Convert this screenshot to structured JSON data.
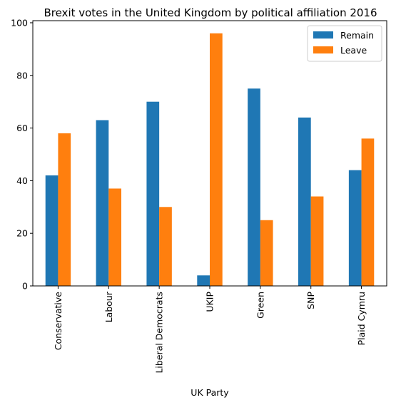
{
  "chart_data": {
    "type": "bar",
    "title": "Brexit votes in the United Kingdom by political affiliation 2016",
    "xlabel": "UK Party",
    "ylabel": "",
    "categories": [
      "Conservative",
      "Labour",
      "Liberal Democrats",
      "UKIP",
      "Green",
      "SNP",
      "Plaid Cymru"
    ],
    "series": [
      {
        "name": "Remain",
        "values": [
          42,
          63,
          70,
          4,
          75,
          64,
          44
        ],
        "color": "#1f77b4"
      },
      {
        "name": "Leave",
        "values": [
          58,
          37,
          30,
          96,
          25,
          34,
          56
        ],
        "color": "#ff7f0e"
      }
    ],
    "ylim": [
      0,
      100.8
    ],
    "yticks": [
      0,
      20,
      40,
      60,
      80,
      100
    ],
    "grid": false,
    "legend_position": "top-right"
  }
}
